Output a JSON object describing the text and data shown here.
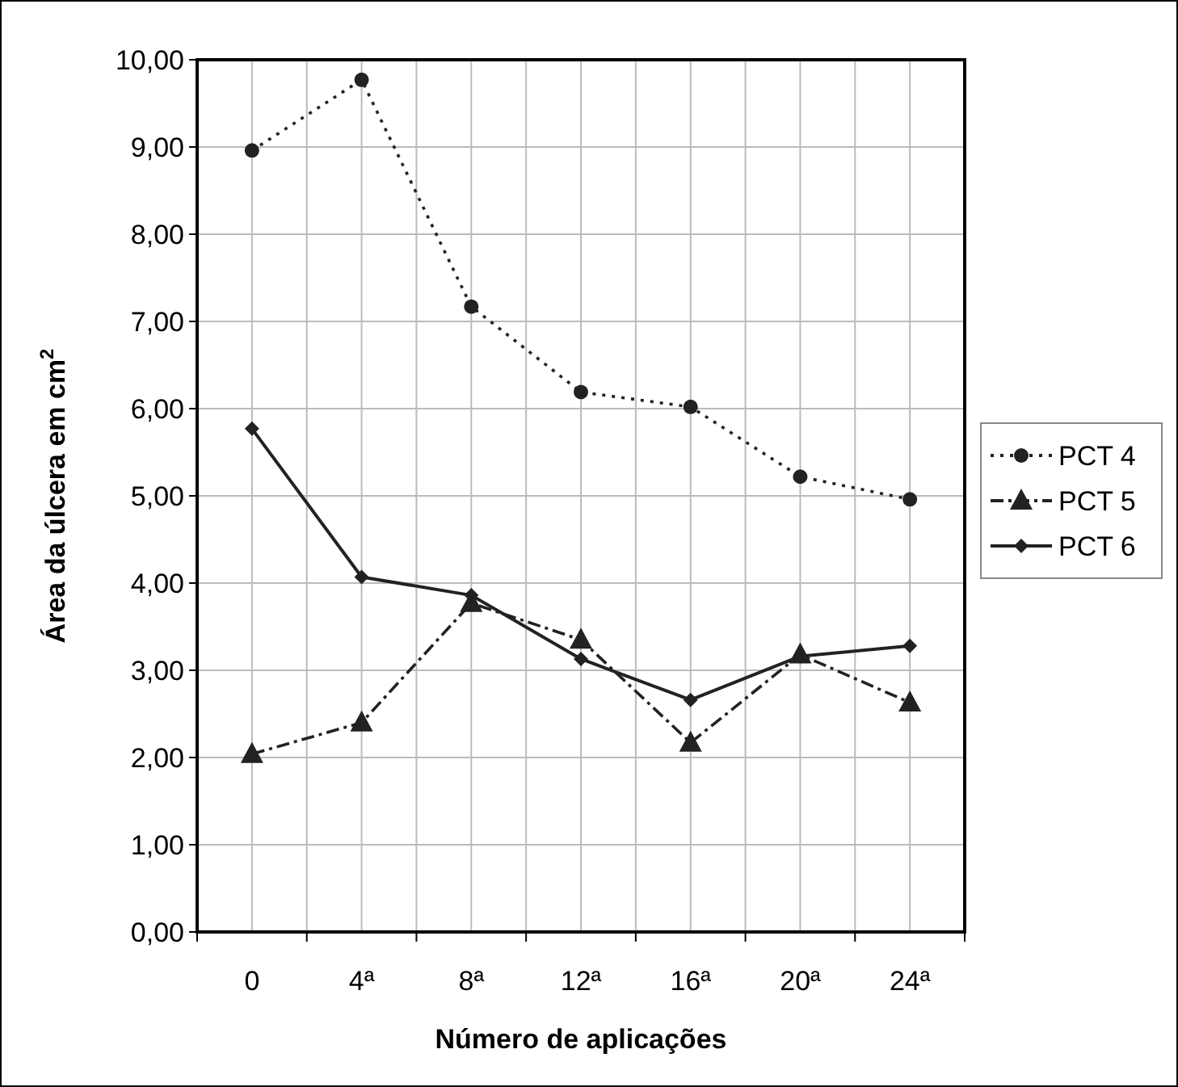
{
  "chart_data": {
    "type": "line",
    "xlabel": "Número de aplicações",
    "ylabel": "Área da úlcera em cm$^{2}$",
    "categories": [
      "0",
      "4ª",
      "8ª",
      "12ª",
      "16ª",
      "20ª",
      "24ª"
    ],
    "series": [
      {
        "name": "PCT 4",
        "color": "#222222",
        "marker": "circle",
        "line_style": "dotted",
        "values": [
          8.96,
          9.77,
          7.17,
          6.19,
          6.02,
          5.22,
          4.96
        ]
      },
      {
        "name": "PCT 5",
        "color": "#222222",
        "marker": "triangle",
        "line_style": "dashed",
        "values": [
          2.04,
          2.4,
          3.77,
          3.35,
          2.17,
          3.18,
          2.63
        ]
      },
      {
        "name": "PCT 6",
        "color": "#222222",
        "marker": "diamond",
        "line_style": "solid",
        "values": [
          5.77,
          4.07,
          3.86,
          3.13,
          2.66,
          3.16,
          3.28
        ]
      }
    ],
    "ylim": [
      0,
      10
    ],
    "yticks": [
      {
        "value": 0,
        "label": "0,00"
      },
      {
        "value": 1,
        "label": "1,00"
      },
      {
        "value": 2,
        "label": "2,00"
      },
      {
        "value": 3,
        "label": "3,00"
      },
      {
        "value": 4,
        "label": "4,00"
      },
      {
        "value": 5,
        "label": "5,00"
      },
      {
        "value": 6,
        "label": "6,00"
      },
      {
        "value": 7,
        "label": "7,00"
      },
      {
        "value": 8,
        "label": "8,00"
      },
      {
        "value": 9,
        "label": "9,00"
      },
      {
        "value": 10,
        "label": "10,00"
      }
    ],
    "grid": true,
    "legend": "right"
  }
}
